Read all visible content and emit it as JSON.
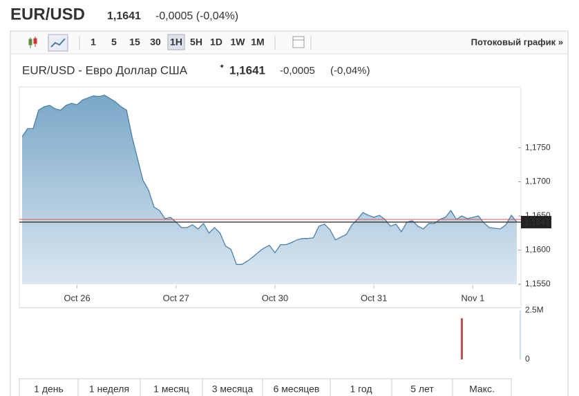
{
  "header": {
    "symbol": "EUR/USD",
    "price": "1,1641",
    "change": "-0,0005 (-0,04%)"
  },
  "toolbar": {
    "intervals": [
      "1",
      "5",
      "15",
      "30",
      "1H",
      "5H",
      "1D",
      "1W",
      "1M"
    ],
    "active_interval": 4,
    "stream_link": "Потоковый график »"
  },
  "chart_data": {
    "type": "area",
    "title": "EUR/USD - Евро Доллар США",
    "price": "1,1641",
    "change": "-0,0005",
    "change_pct": "(-0,04%)",
    "color": "#4d7fa6",
    "values": [
      1.1766,
      1.1778,
      1.1778,
      1.1805,
      1.181,
      1.1812,
      1.1807,
      1.1805,
      1.1812,
      1.1815,
      1.1813,
      1.182,
      1.1823,
      1.1826,
      1.1825,
      1.1827,
      1.1822,
      1.1817,
      1.181,
      1.1805,
      1.1766,
      1.1734,
      1.1702,
      1.1688,
      1.1663,
      1.1658,
      1.1646,
      1.1648,
      1.1641,
      1.1633,
      1.1633,
      1.1637,
      1.1631,
      1.1639,
      1.1625,
      1.1633,
      1.1625,
      1.1606,
      1.1601,
      1.1579,
      1.1579,
      1.1584,
      1.159,
      1.1597,
      1.1603,
      1.1607,
      1.1596,
      1.1608,
      1.1608,
      1.1611,
      1.1615,
      1.1617,
      1.1617,
      1.1618,
      1.1635,
      1.1638,
      1.163,
      1.1615,
      1.1619,
      1.1623,
      1.1637,
      1.1645,
      1.1655,
      1.1651,
      1.1648,
      1.1651,
      1.1645,
      1.1635,
      1.1638,
      1.1627,
      1.1641,
      1.1643,
      1.1635,
      1.1631,
      1.1639,
      1.1639,
      1.1645,
      1.1648,
      1.1658,
      1.1645,
      1.165,
      1.1646,
      1.1648,
      1.165,
      1.164,
      1.1633,
      1.1632,
      1.1631,
      1.1637,
      1.1651,
      1.1641
    ],
    "xlim": [
      0,
      90
    ],
    "xticks": [
      {
        "value": 10,
        "label": "Oct 26"
      },
      {
        "value": 28,
        "label": "Oct 27"
      },
      {
        "value": 46,
        "label": "Oct 30"
      },
      {
        "value": 64,
        "label": "Oct 31"
      },
      {
        "value": 82,
        "label": "Nov 1"
      }
    ],
    "ylim": [
      1.155,
      1.1838
    ],
    "yticks": [
      {
        "value": 1.155,
        "label": "1,1550"
      },
      {
        "value": 1.16,
        "label": "1,1600"
      },
      {
        "value": 1.165,
        "label": "1,1650"
      },
      {
        "value": 1.17,
        "label": "1,1700"
      },
      {
        "value": 1.175,
        "label": "1,1750"
      }
    ],
    "last_price": {
      "value": 1.1641,
      "label": "1,1641"
    },
    "reference_line": {
      "value": 1.1645,
      "color": "#d9534f"
    },
    "volume": {
      "ylim": [
        0,
        2500000
      ],
      "yticks": [
        {
          "value": 2500000,
          "label": "2.5M"
        },
        0
      ],
      "color": "#c0504d",
      "bars": [
        {
          "x": 80,
          "value": 2100000
        }
      ]
    }
  },
  "ranges": [
    "1 день",
    "1 неделя",
    "1 месяц",
    "3 месяца",
    "6 месяцев",
    "1 год",
    "5 лет",
    "Макс."
  ]
}
